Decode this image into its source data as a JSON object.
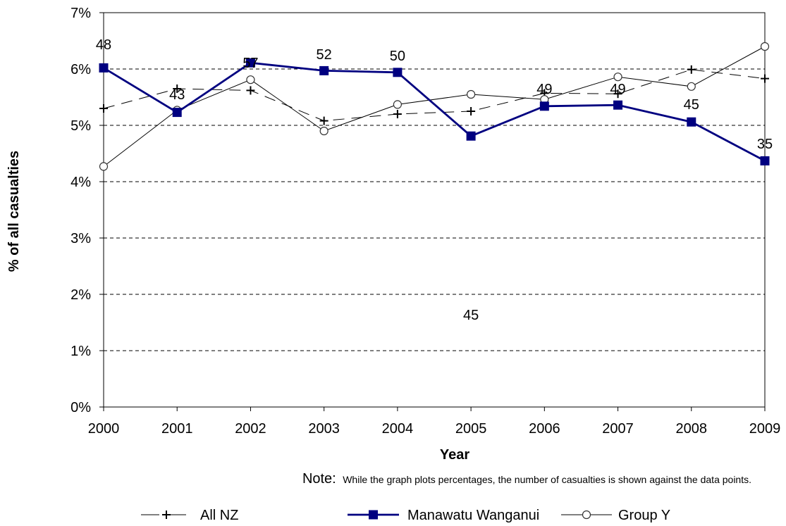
{
  "chart_data": {
    "type": "line",
    "xlabel": "Year",
    "ylabel": "% of all casualties",
    "x": [
      "2000",
      "2001",
      "2002",
      "2003",
      "2004",
      "2005",
      "2006",
      "2007",
      "2008",
      "2009"
    ],
    "ylim": [
      0,
      7
    ],
    "yticks": [
      "0%",
      "1%",
      "2%",
      "3%",
      "4%",
      "5%",
      "6%",
      "7%"
    ],
    "grid": "horizontal dashed",
    "legend_position": "bottom",
    "series": [
      {
        "name": "All NZ",
        "marker": "plus",
        "line_style": "dashed",
        "color": "#000000",
        "values": [
          5.3,
          5.65,
          5.62,
          5.08,
          5.2,
          5.25,
          5.57,
          5.56,
          5.99,
          5.83
        ]
      },
      {
        "name": "Manawatu Wanganui",
        "marker": "square",
        "line_style": "solid",
        "color": "#000080",
        "values": [
          6.02,
          5.23,
          6.11,
          5.97,
          5.94,
          4.81,
          5.34,
          5.36,
          5.06,
          4.37
        ],
        "labels": [
          "48",
          "43",
          "57",
          "52",
          "50",
          "45",
          "49",
          "49",
          "45",
          "35"
        ]
      },
      {
        "name": "Group Y",
        "marker": "circle",
        "line_style": "solid",
        "color": "#000000",
        "values": [
          4.27,
          5.27,
          5.81,
          4.9,
          5.37,
          5.55,
          5.46,
          5.86,
          5.69,
          6.4
        ]
      }
    ]
  },
  "note": {
    "prefix": "Note:",
    "text": "While the graph plots percentages, the number of casualties is shown against the data points."
  }
}
